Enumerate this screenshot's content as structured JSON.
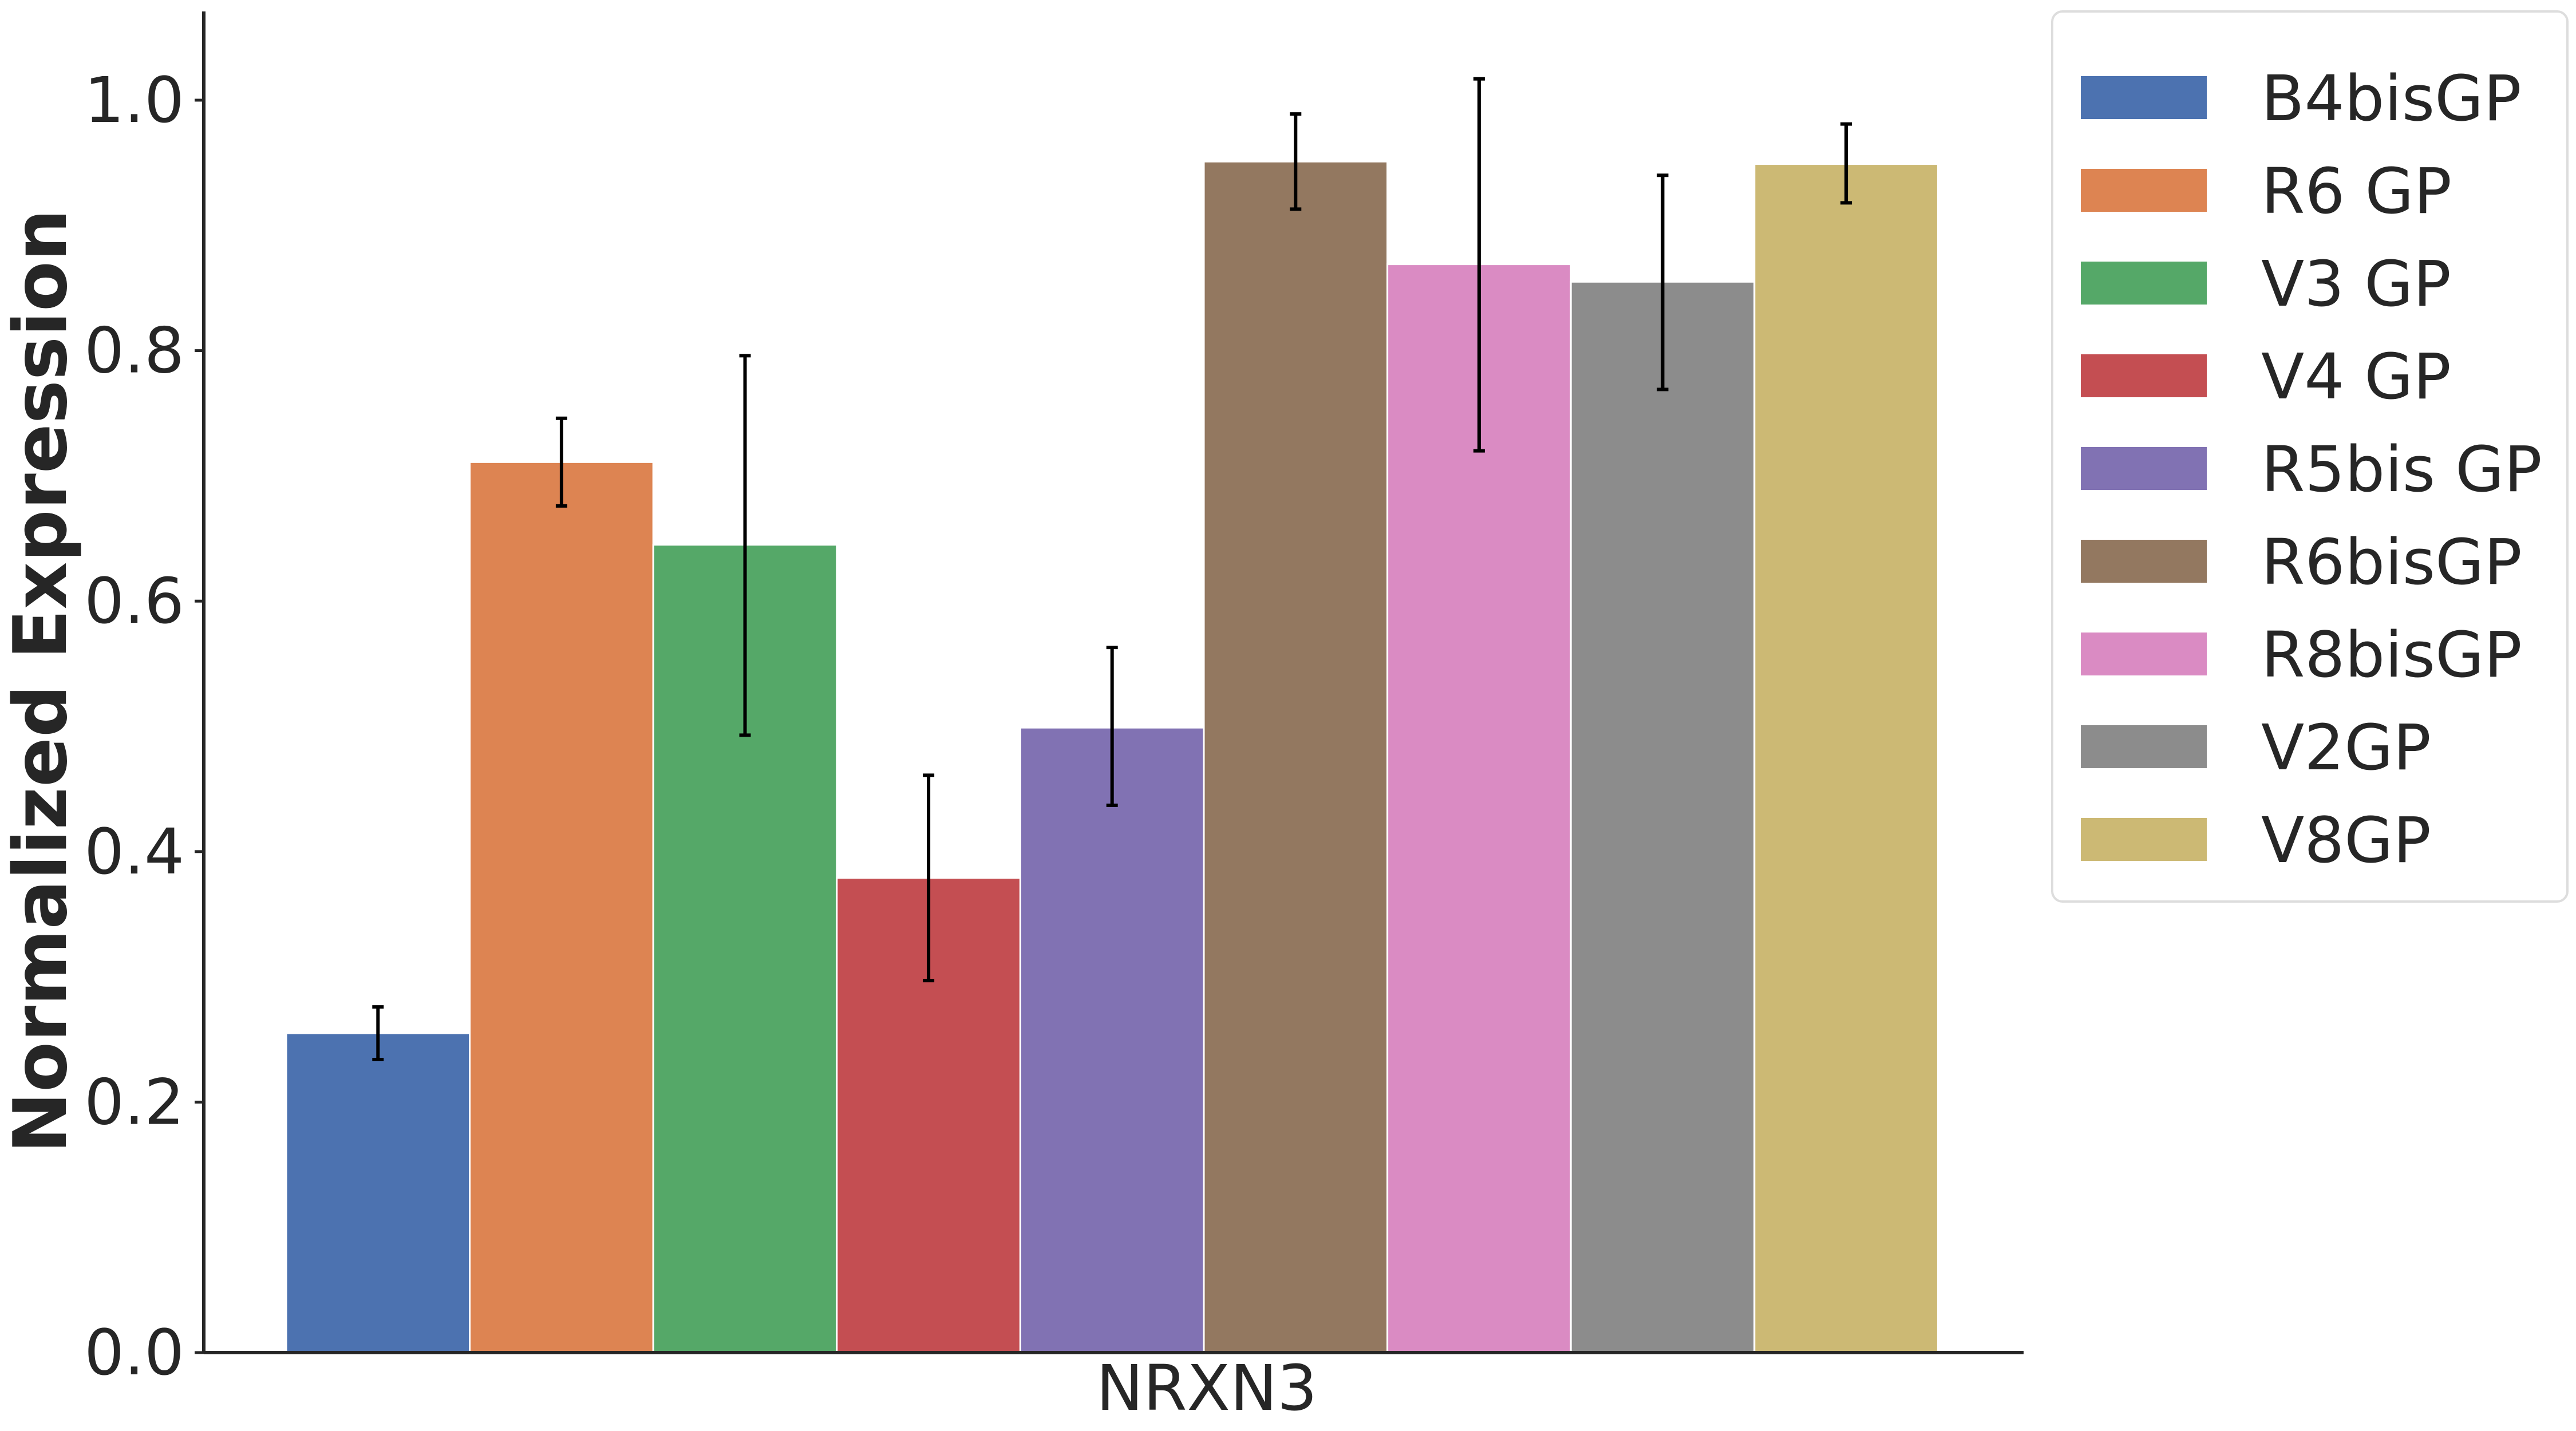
{
  "chart_data": {
    "type": "bar",
    "categories": [
      "NRXN3"
    ],
    "xlabel": "",
    "ylabel": "Normalized Expression",
    "ylim": [
      0,
      1.07
    ],
    "yticks": [
      "0.0",
      "0.2",
      "0.4",
      "0.6",
      "0.8",
      "1.0"
    ],
    "grid": false,
    "legend_position": "upper-right-outside",
    "series": [
      {
        "name": "B4bisGP",
        "values": [
          0.255
        ],
        "err_low": [
          0.234
        ],
        "err_high": [
          0.276
        ],
        "color": "#4c72b0"
      },
      {
        "name": "R6 GP",
        "values": [
          0.711
        ],
        "err_low": [
          0.676
        ],
        "err_high": [
          0.746
        ],
        "color": "#dd8452"
      },
      {
        "name": "V3 GP",
        "values": [
          0.645
        ],
        "err_low": [
          0.493
        ],
        "err_high": [
          0.796
        ],
        "color": "#55a868"
      },
      {
        "name": "V4 GP",
        "values": [
          0.379
        ],
        "err_low": [
          0.297
        ],
        "err_high": [
          0.461
        ],
        "color": "#c44e52"
      },
      {
        "name": "R5bis GP",
        "values": [
          0.499
        ],
        "err_low": [
          0.437
        ],
        "err_high": [
          0.563
        ],
        "color": "#8172b3"
      },
      {
        "name": "R6bisGP",
        "values": [
          0.951
        ],
        "err_low": [
          0.913
        ],
        "err_high": [
          0.989
        ],
        "color": "#937860"
      },
      {
        "name": "R8bisGP",
        "values": [
          0.869
        ],
        "err_low": [
          0.72
        ],
        "err_high": [
          1.017
        ],
        "color": "#da8bc3"
      },
      {
        "name": "V2GP",
        "values": [
          0.855
        ],
        "err_low": [
          0.769
        ],
        "err_high": [
          0.94
        ],
        "color": "#8c8c8c"
      },
      {
        "name": "V8GP",
        "values": [
          0.949
        ],
        "err_low": [
          0.918
        ],
        "err_high": [
          0.981
        ],
        "color": "#ccb974"
      }
    ]
  }
}
